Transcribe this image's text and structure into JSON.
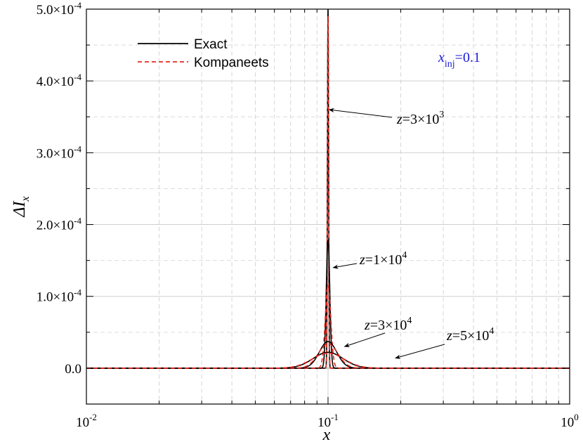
{
  "chart_data": {
    "type": "line",
    "xscale": "log",
    "xlim": [
      0.01,
      1
    ],
    "ylim": [
      -5e-05,
      0.0005
    ],
    "xlabel": "x",
    "ylabel": "ΔI_x",
    "grid": true,
    "legend_position": "top-left",
    "x_tick_labels": [
      {
        "value": 0.01,
        "base": "10",
        "exp": "-2"
      },
      {
        "value": 0.1,
        "base": "10",
        "exp": "-1"
      },
      {
        "value": 1,
        "base": "10",
        "exp": "0"
      }
    ],
    "y_tick_labels": [
      {
        "value": 0.0,
        "mant": "0.0",
        "exp": ""
      },
      {
        "value": 0.0001,
        "mant": "1.0×10",
        "exp": "-4"
      },
      {
        "value": 0.0002,
        "mant": "2.0×10",
        "exp": "-4"
      },
      {
        "value": 0.0003,
        "mant": "3.0×10",
        "exp": "-4"
      },
      {
        "value": 0.0004,
        "mant": "4.0×10",
        "exp": "-4"
      },
      {
        "value": 0.0005,
        "mant": "5.0×10",
        "exp": "-4"
      }
    ],
    "legend": [
      {
        "label": "Exact",
        "color": "#000000",
        "dash": "solid"
      },
      {
        "label": "Kompaneets",
        "color": "#e8281e",
        "dash": "dashed"
      }
    ],
    "annotation_injection": {
      "prefix": "x",
      "sub": "inj",
      "suffix": "=0.1",
      "color": "#1a1adb"
    },
    "annotations": [
      {
        "base": "z=3×10",
        "exp": "3",
        "arrow_to": {
          "x": 0.101,
          "y": 0.00036
        }
      },
      {
        "base": "z=1×10",
        "exp": "4",
        "arrow_to": {
          "x": 0.105,
          "y": 0.00014
        }
      },
      {
        "base": "z=3×10",
        "exp": "4",
        "arrow_to": {
          "x": 0.117,
          "y": 3e-05
        }
      },
      {
        "base": "z=5×10",
        "exp": "4",
        "arrow_to": {
          "x": 0.19,
          "y": 1.4e-05
        }
      }
    ],
    "series": [
      {
        "curve": "z=3×10^3",
        "kind": "Exact",
        "color": "#000000",
        "dash": "solid",
        "peak": 0.0005,
        "sigma_log10": 0.0025
      },
      {
        "curve": "z=3×10^3",
        "kind": "Kompaneets",
        "color": "#e8281e",
        "dash": "dashed",
        "peak": 0.00049,
        "sigma_log10": 0.0026
      },
      {
        "curve": "z=1×10^4",
        "kind": "Exact",
        "color": "#000000",
        "dash": "solid",
        "peak": 0.000178,
        "sigma_log10": 0.0074
      },
      {
        "curve": "z=1×10^4",
        "kind": "Kompaneets",
        "color": "#e8281e",
        "dash": "dashed",
        "peak": 0.000115,
        "sigma_log10": 0.0115
      },
      {
        "curve": "z=3×10^4",
        "kind": "Exact",
        "color": "#000000",
        "dash": "solid",
        "peak": 3.7e-05,
        "sigma_log10": 0.036
      },
      {
        "curve": "z=3×10^4",
        "kind": "Kompaneets",
        "color": "#e8281e",
        "dash": "dashed",
        "peak": 3.4e-05,
        "sigma_log10": 0.04
      },
      {
        "curve": "z=5×10^4",
        "kind": "Exact",
        "color": "#000000",
        "dash": "solid",
        "peak": 2.2e-05,
        "sigma_log10": 0.062
      },
      {
        "curve": "z=5×10^4",
        "kind": "Kompaneets",
        "color": "#e8281e",
        "dash": "dashed",
        "peak": 2.1e-05,
        "sigma_log10": 0.066
      }
    ],
    "center_log10_x": -1.0
  }
}
